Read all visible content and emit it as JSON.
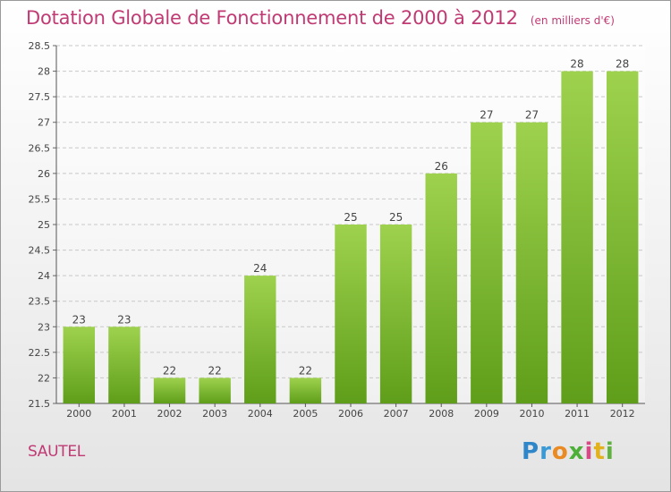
{
  "header": {
    "title": "Dotation Globale de Fonctionnement de 2000 à 2012",
    "unit": "(en milliers d'€)"
  },
  "footer": {
    "town": "SAUTEL",
    "logo": "Proxiti"
  },
  "colors": {
    "title": "#c03a74",
    "bar_top": "#9ed24e",
    "bar_bottom": "#5f9e1a"
  },
  "chart_data": {
    "type": "bar",
    "title": "Dotation Globale de Fonctionnement de 2000 à 2012",
    "xlabel": "",
    "ylabel": "",
    "categories": [
      "2000",
      "2001",
      "2002",
      "2003",
      "2004",
      "2005",
      "2006",
      "2007",
      "2008",
      "2009",
      "2010",
      "2011",
      "2012"
    ],
    "values": [
      23,
      23,
      22,
      22,
      24,
      22,
      25,
      25,
      26,
      27,
      27,
      28,
      28
    ],
    "value_labels": [
      "23",
      "23",
      "22",
      "22",
      "24",
      "22",
      "25",
      "25",
      "26",
      "27",
      "27",
      "28",
      "28"
    ],
    "ylim": [
      21.5,
      28.5
    ],
    "yticks": [
      "21.5",
      "22",
      "22.5",
      "23",
      "23.5",
      "24",
      "24.5",
      "25",
      "25.5",
      "26",
      "26.5",
      "27",
      "27.5",
      "28",
      "28.5"
    ],
    "grid": true,
    "legend": "none"
  }
}
